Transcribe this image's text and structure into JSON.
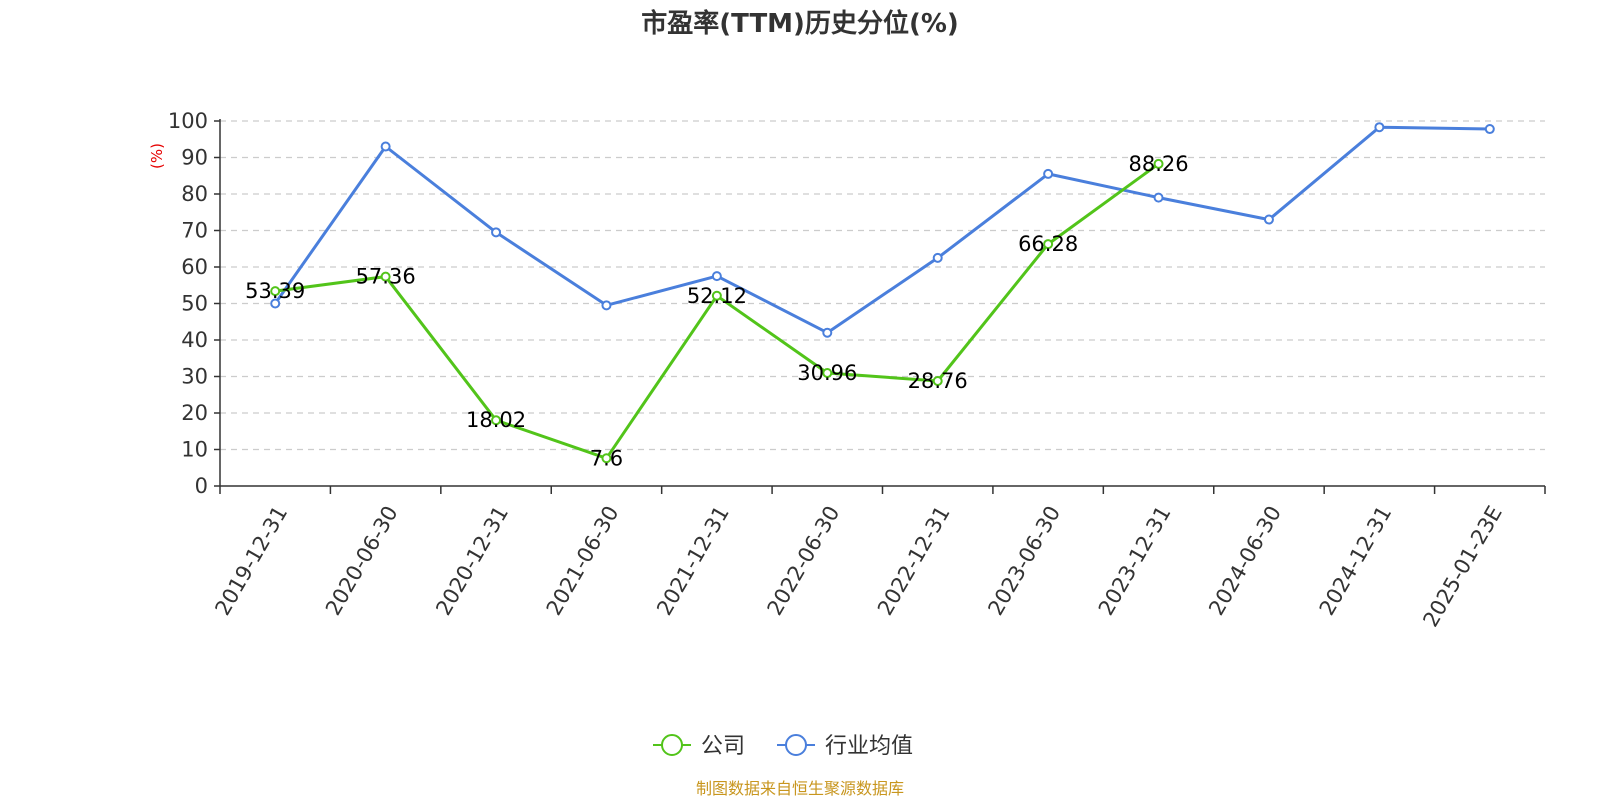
{
  "chart_data": {
    "type": "line",
    "title": "市盈率(TTM)历史分位(%)",
    "ylabel": "(%)",
    "ylim": [
      0,
      100
    ],
    "yticks": [
      0,
      10,
      20,
      30,
      40,
      50,
      60,
      70,
      80,
      90,
      100
    ],
    "categories": [
      "2019-12-31",
      "2020-06-30",
      "2020-12-31",
      "2021-06-30",
      "2021-12-31",
      "2022-06-30",
      "2022-12-31",
      "2023-06-30",
      "2023-12-31",
      "2024-06-30",
      "2024-12-31",
      "2025-01-23E"
    ],
    "grid": true,
    "legend_position": "bottom-center",
    "series": [
      {
        "name": "公司",
        "color": "#52c41a",
        "show_labels": true,
        "values": [
          53.39,
          57.36,
          18.02,
          7.6,
          52.12,
          30.96,
          28.76,
          66.28,
          88.26,
          null,
          null,
          null
        ]
      },
      {
        "name": "行业均值",
        "color": "#4a7fdc",
        "show_labels": false,
        "values": [
          50.0,
          93.0,
          69.5,
          49.5,
          57.5,
          42.0,
          62.5,
          85.5,
          79.0,
          73.0,
          98.3,
          97.8
        ]
      }
    ]
  },
  "source_text": "制图数据来自恒生聚源数据库",
  "colors": {
    "axis": "#333333",
    "grid": "#cccccc",
    "unit_label": "#e60000",
    "source": "#c8961e"
  }
}
